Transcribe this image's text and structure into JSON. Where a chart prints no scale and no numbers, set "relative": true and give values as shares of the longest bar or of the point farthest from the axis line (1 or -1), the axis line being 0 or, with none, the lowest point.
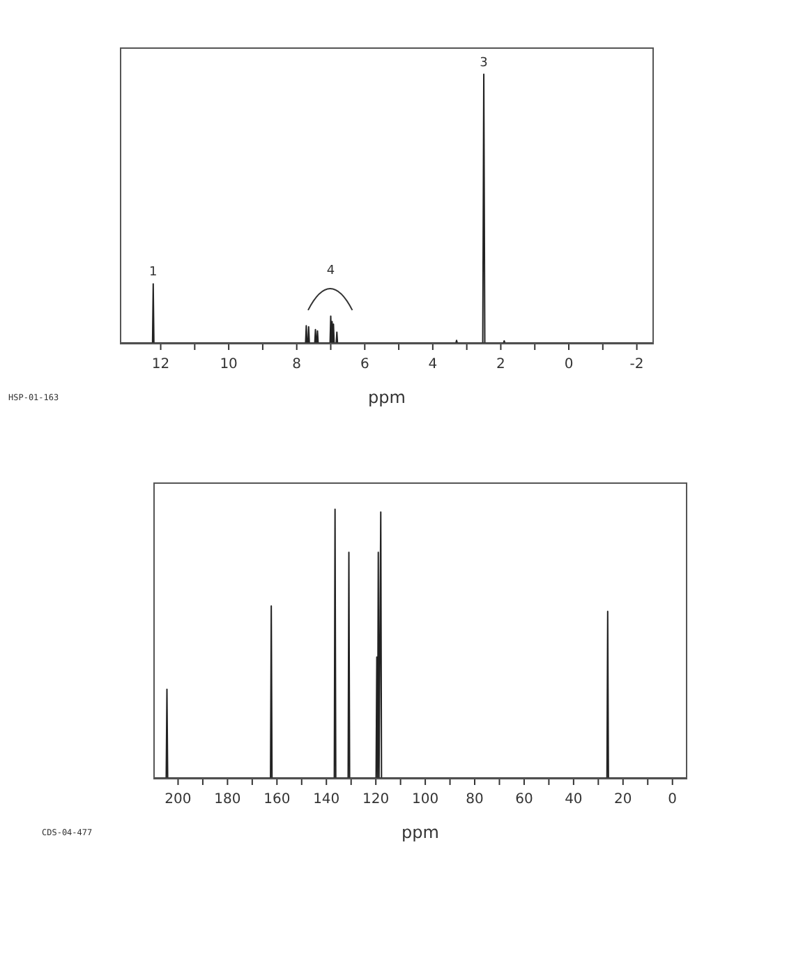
{
  "chart_data": [
    {
      "type": "line",
      "relative": true,
      "xlabel": "ppm",
      "xlim": [
        13.2,
        -2.5
      ],
      "xticks": [
        12,
        {
          "value": 11,
          "label": null
        },
        10,
        {
          "value": 9,
          "label": null
        },
        8,
        {
          "value": 7,
          "label": null
        },
        6,
        {
          "value": 5,
          "label": null
        },
        4,
        {
          "value": 3,
          "label": null
        },
        2,
        {
          "value": 1,
          "label": null
        },
        0,
        {
          "value": -1,
          "label": null
        },
        -2
      ],
      "grid": false,
      "legend": false,
      "series": [
        {
          "color": "#222222",
          "x": [
            13.2,
            12.24,
            12.22,
            12.2,
            7.74,
            7.72,
            7.7,
            7.67,
            7.65,
            7.63,
            7.47,
            7.45,
            7.43,
            7.41,
            7.39,
            7.37,
            7.02,
            7.0,
            6.98,
            6.96,
            6.94,
            6.92,
            6.9,
            6.84,
            6.82,
            6.8,
            3.32,
            3.3,
            3.28,
            2.53,
            2.5,
            2.47,
            1.92,
            1.9,
            1.88,
            -2.5
          ],
          "values": [
            0,
            0,
            0.22,
            0,
            0,
            0.064,
            0,
            0,
            0.06,
            0,
            0,
            0.05,
            0,
            0,
            0.045,
            0,
            0,
            0.1,
            0,
            0.08,
            0,
            0.07,
            0,
            0,
            0.04,
            0,
            0,
            0.01,
            0,
            0,
            1,
            0,
            0,
            0.008,
            0,
            0
          ]
        }
      ],
      "annotations": [
        {
          "text": "1",
          "x": 12.22,
          "y": 0.22
        },
        {
          "text": "4",
          "x": 7.0,
          "y": 0.1
        },
        {
          "text": "3",
          "x": 2.5,
          "y": 1
        },
        "HSP-01-163"
      ]
    },
    {
      "type": "line",
      "relative": true,
      "xlabel": "ppm",
      "xlim": [
        210,
        -6
      ],
      "xticks": [
        200,
        {
          "value": 190,
          "label": null
        },
        180,
        {
          "value": 170,
          "label": null
        },
        160,
        {
          "value": 150,
          "label": null
        },
        140,
        {
          "value": 130,
          "label": null
        },
        120,
        {
          "value": 110,
          "label": null
        },
        100,
        {
          "value": 90,
          "label": null
        },
        80,
        {
          "value": 70,
          "label": null
        },
        60,
        {
          "value": 50,
          "label": null
        },
        40,
        {
          "value": 30,
          "label": null
        },
        20,
        {
          "value": 10,
          "label": null
        },
        0
      ],
      "grid": false,
      "legend": false,
      "series": [
        {
          "color": "#222222",
          "x": [
            210,
            204.8,
            204.5,
            204.2,
            162.6,
            162.3,
            162.0,
            136.8,
            136.5,
            136.2,
            131.2,
            130.9,
            130.6,
            119.9,
            119.6,
            119.3,
            119.0,
            118.7,
            118.0,
            117.7,
            26.5,
            26.2,
            25.9,
            -6
          ],
          "values": [
            0,
            0,
            0.33,
            0,
            0,
            0.64,
            0,
            0,
            1,
            0,
            0,
            0.84,
            0,
            0,
            0.45,
            0,
            0.84,
            0,
            0.99,
            0,
            0,
            0.62,
            0,
            0
          ]
        }
      ],
      "annotations": [
        "CDS-04-477"
      ]
    }
  ]
}
